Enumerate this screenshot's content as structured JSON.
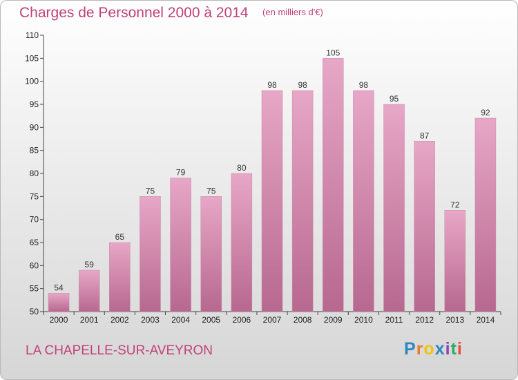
{
  "header": {
    "title": "Charges de Personnel 2000 à 2014",
    "subtitle": "(en milliers d'€)"
  },
  "footer": {
    "town": "LA CHAPELLE-SUR-AVEYRON",
    "logo_letters": [
      "P",
      "r",
      "o",
      "x",
      "i",
      "t",
      "i"
    ],
    "logo_colors": [
      "#2e86c1",
      "#e67e22",
      "#f1c40f",
      "#2e86c1",
      "#8e44ad",
      "#27ae60",
      "#e74c3c"
    ]
  },
  "chart_data": {
    "type": "bar",
    "title": "Charges de Personnel 2000 à 2014",
    "subtitle": "(en milliers d'€)",
    "categories": [
      "2000",
      "2001",
      "2002",
      "2003",
      "2004",
      "2005",
      "2006",
      "2007",
      "2008",
      "2009",
      "2010",
      "2011",
      "2012",
      "2013",
      "2014"
    ],
    "values": [
      54,
      59,
      65,
      75,
      79,
      75,
      80,
      98,
      98,
      105,
      98,
      95,
      87,
      72,
      92
    ],
    "ylim": [
      50,
      110
    ],
    "yticks": [
      50,
      55,
      60,
      65,
      70,
      75,
      80,
      85,
      90,
      95,
      100,
      105,
      110
    ],
    "grid": false,
    "bar_color": "#d9799f",
    "accent_color": "#c2407b"
  }
}
